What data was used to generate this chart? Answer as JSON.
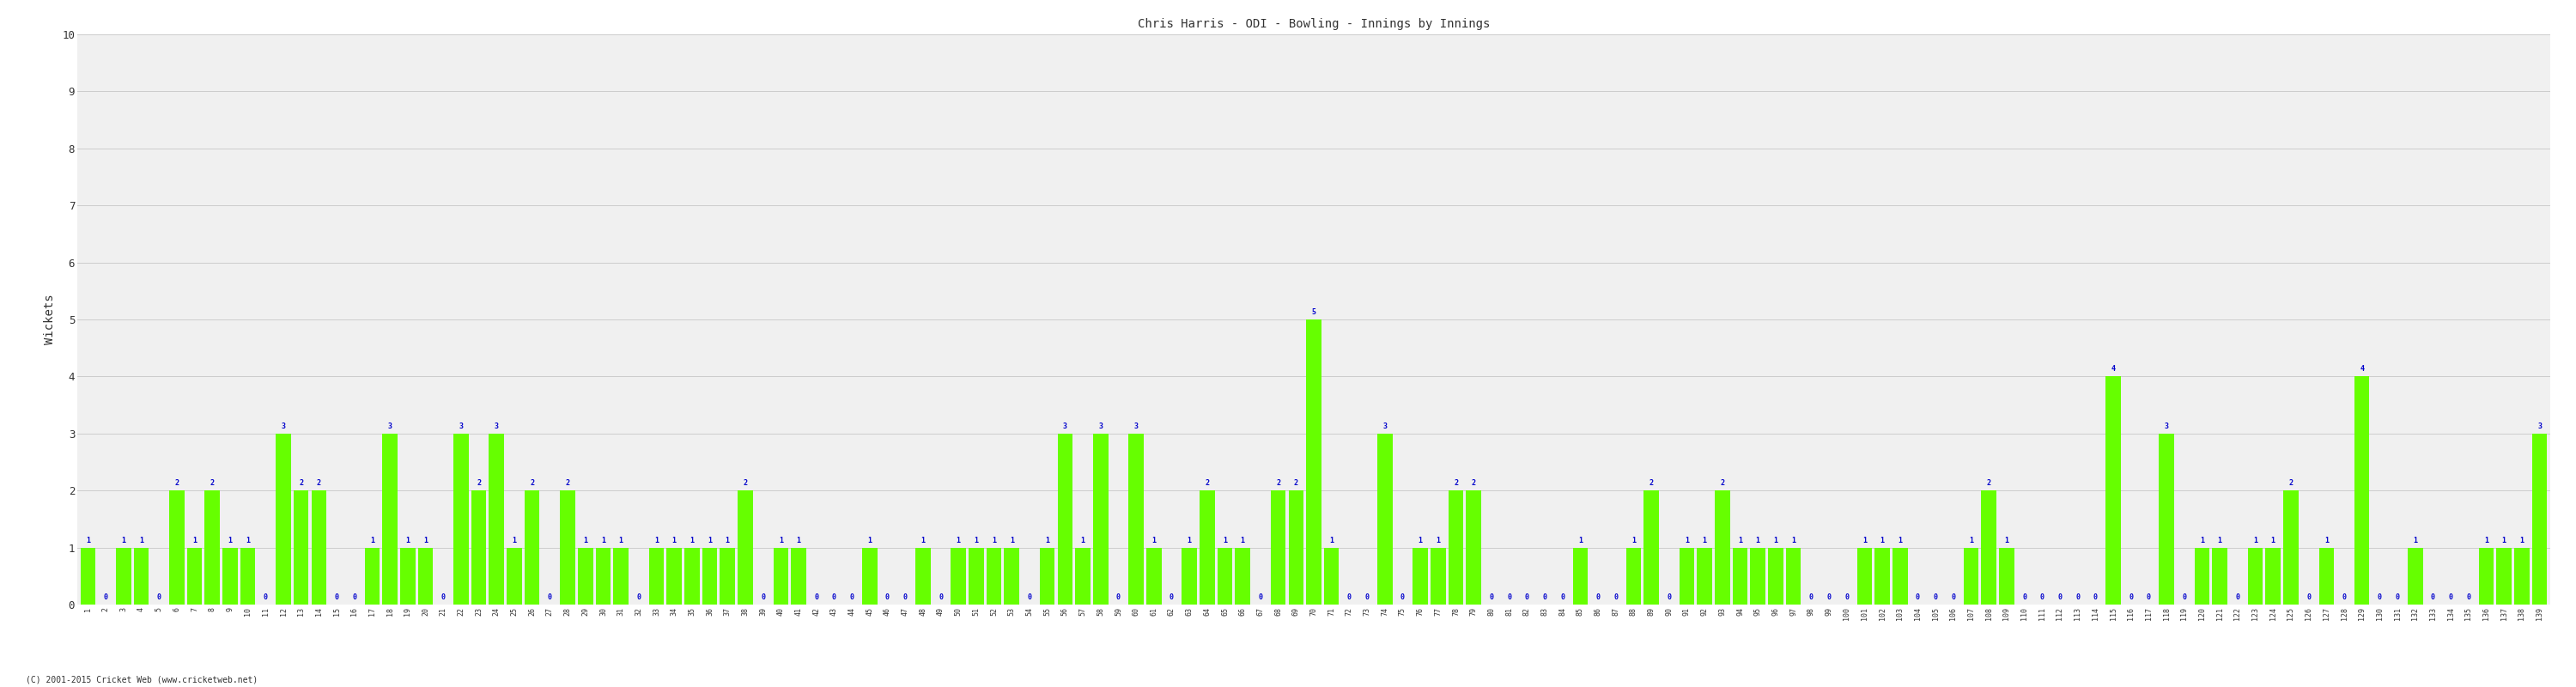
{
  "title": "Chris Harris - ODI - Bowling - Innings by Innings",
  "ylabel": "Wickets",
  "bar_color": "#66ff00",
  "label_color": "#0000cc",
  "background_color": "#f0f0f0",
  "grid_color": "#cccccc",
  "ylim": [
    0,
    10
  ],
  "yticks": [
    0,
    1,
    2,
    3,
    4,
    5,
    6,
    7,
    8,
    9,
    10
  ],
  "footer": "(C) 2001-2015 Cricket Web (www.cricketweb.net)",
  "wickets": [
    1,
    0,
    1,
    1,
    0,
    2,
    1,
    2,
    1,
    1,
    0,
    3,
    2,
    2,
    0,
    0,
    1,
    3,
    1,
    1,
    0,
    3,
    2,
    3,
    1,
    2,
    0,
    2,
    1,
    1,
    1,
    0,
    1,
    1,
    1,
    1,
    1,
    2,
    0,
    1,
    1,
    0,
    0,
    0,
    1,
    0,
    0,
    1,
    0,
    1,
    1,
    1,
    1,
    0,
    1,
    3,
    1,
    3,
    0,
    3,
    1,
    0,
    1,
    2,
    1,
    1,
    0,
    2,
    2,
    5,
    1,
    0,
    0,
    3,
    0,
    1,
    1,
    2,
    2,
    0,
    0,
    0,
    0,
    0,
    1,
    0,
    0,
    1,
    2,
    0,
    1,
    1,
    2,
    1,
    1,
    1,
    1,
    0,
    0,
    0,
    1,
    1,
    1,
    0,
    0,
    0,
    1,
    2,
    1,
    0,
    0,
    0,
    0,
    0,
    4,
    0,
    0,
    3,
    0,
    1,
    1,
    0,
    1,
    1,
    2,
    0,
    1,
    0,
    4,
    0,
    0,
    1,
    0,
    0,
    0,
    1,
    1,
    1,
    3
  ],
  "labels": [
    1,
    2,
    3,
    4,
    5,
    6,
    7,
    8,
    9,
    10,
    11,
    12,
    13,
    14,
    15,
    16,
    17,
    18,
    19,
    20,
    21,
    22,
    23,
    24,
    25,
    26,
    27,
    28,
    29,
    30,
    31,
    32,
    33,
    34,
    35,
    36,
    37,
    38,
    39,
    40,
    41,
    42,
    43,
    44,
    45,
    46,
    47,
    48,
    49,
    50,
    51,
    52,
    53,
    54,
    55,
    56,
    57,
    58,
    59,
    60,
    61,
    62,
    63,
    64,
    65,
    66,
    67,
    68,
    69,
    70,
    71,
    72,
    73,
    74,
    75,
    76,
    77,
    78,
    79,
    80,
    81,
    82,
    83,
    84,
    85,
    86,
    87,
    88,
    89,
    90,
    91,
    92,
    93,
    94,
    95,
    96,
    97,
    98,
    99,
    100,
    101,
    102,
    103,
    104,
    105,
    106,
    107,
    108,
    109,
    110,
    111,
    112,
    113,
    114,
    115,
    116,
    117,
    118,
    119,
    120,
    121,
    122,
    123,
    124,
    125,
    126,
    127,
    128,
    129,
    130,
    131,
    132,
    133,
    134,
    135,
    136,
    137,
    138,
    139
  ]
}
